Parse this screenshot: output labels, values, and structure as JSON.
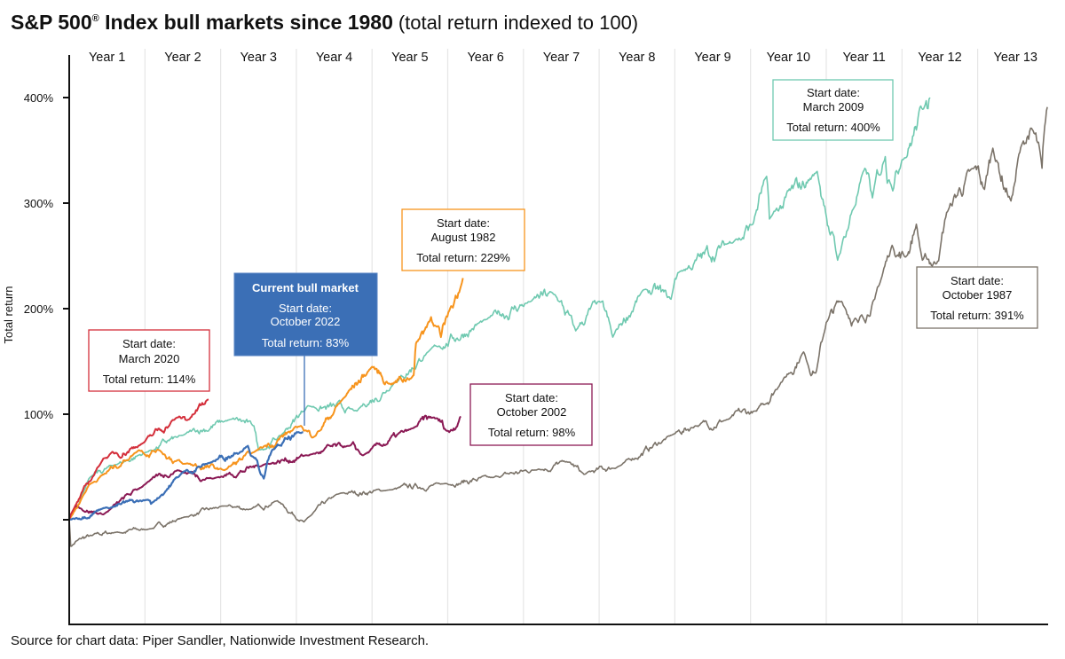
{
  "chart_data": {
    "type": "line",
    "title": "S&P 500",
    "title_mark": "®",
    "title_rest": " Index bull markets since 1980",
    "subtitle": "(total return indexed to 100)",
    "xlabel": "",
    "ylabel": "Total return",
    "x_range_years": [
      0,
      13
    ],
    "y_range_pct": [
      -100,
      420
    ],
    "y_ticks": [
      {
        "value": 400,
        "label": "400%"
      },
      {
        "value": 300,
        "label": "300%"
      },
      {
        "value": 200,
        "label": "200%"
      },
      {
        "value": 100,
        "label": "100%"
      },
      {
        "value": 0,
        "label": ""
      }
    ],
    "x_categories": [
      "Year 1",
      "Year 2",
      "Year 3",
      "Year 4",
      "Year 5",
      "Year 6",
      "Year 7",
      "Year 8",
      "Year 9",
      "Year 10",
      "Year 11",
      "Year 12",
      "Year 13"
    ],
    "grid": "vertical",
    "series": [
      {
        "name": "October 1987",
        "color": "#7b7369",
        "width": 1.6,
        "points": [
          [
            0,
            0
          ],
          [
            0.02,
            -25
          ],
          [
            0.1,
            -20
          ],
          [
            0.3,
            -15
          ],
          [
            0.6,
            -12
          ],
          [
            1.04,
            -9
          ],
          [
            1.5,
            2
          ],
          [
            2.05,
            13
          ],
          [
            2.4,
            10
          ],
          [
            2.75,
            18
          ],
          [
            3.1,
            -2
          ],
          [
            3.53,
            24
          ],
          [
            4.2,
            28
          ],
          [
            4.94,
            34
          ],
          [
            5.6,
            40
          ],
          [
            6.2,
            48
          ],
          [
            6.57,
            55
          ],
          [
            6.8,
            43
          ],
          [
            7.27,
            51
          ],
          [
            7.98,
            81
          ],
          [
            8.27,
            89
          ],
          [
            8.7,
            95
          ],
          [
            9.08,
            103
          ],
          [
            9.4,
            130
          ],
          [
            9.7,
            159
          ],
          [
            9.86,
            139
          ],
          [
            10.0,
            187
          ],
          [
            10.2,
            207
          ],
          [
            10.42,
            187
          ],
          [
            10.64,
            209
          ],
          [
            10.87,
            260
          ],
          [
            11.05,
            249
          ],
          [
            11.19,
            280
          ],
          [
            11.27,
            246
          ],
          [
            11.46,
            243
          ],
          [
            11.59,
            291
          ],
          [
            11.95,
            333
          ],
          [
            12.09,
            313
          ],
          [
            12.2,
            352
          ],
          [
            12.44,
            302
          ],
          [
            12.58,
            355
          ],
          [
            12.71,
            371
          ],
          [
            12.85,
            333
          ],
          [
            12.92,
            391
          ]
        ]
      },
      {
        "name": "March 2009",
        "color": "#6fc9b0",
        "width": 1.6,
        "points": [
          [
            0,
            0
          ],
          [
            0.26,
            39
          ],
          [
            0.6,
            52
          ],
          [
            1.02,
            64
          ],
          [
            1.5,
            80
          ],
          [
            2.13,
            95
          ],
          [
            2.44,
            89
          ],
          [
            2.5,
            66
          ],
          [
            2.8,
            80
          ],
          [
            3.15,
            108
          ],
          [
            3.8,
            103
          ],
          [
            4.3,
            130
          ],
          [
            4.74,
            159
          ],
          [
            5.52,
            190
          ],
          [
            6.1,
            207
          ],
          [
            6.42,
            213
          ],
          [
            6.69,
            179
          ],
          [
            7.0,
            207
          ],
          [
            7.18,
            173
          ],
          [
            7.59,
            218
          ],
          [
            7.95,
            209
          ],
          [
            8.04,
            234
          ],
          [
            8.81,
            266
          ],
          [
            9.03,
            280
          ],
          [
            9.2,
            324
          ],
          [
            9.25,
            285
          ],
          [
            9.88,
            330
          ],
          [
            9.98,
            297
          ],
          [
            10.15,
            246
          ],
          [
            10.51,
            333
          ],
          [
            10.61,
            305
          ],
          [
            10.78,
            344
          ],
          [
            10.83,
            322
          ],
          [
            11.0,
            341
          ],
          [
            11.32,
            397
          ],
          [
            11.37,
            400
          ]
        ]
      },
      {
        "name": "October 2002",
        "color": "#8b1a55",
        "width": 2,
        "points": [
          [
            0,
            0
          ],
          [
            0.1,
            13
          ],
          [
            0.45,
            5
          ],
          [
            1.04,
            36
          ],
          [
            1.43,
            47
          ],
          [
            1.9,
            39
          ],
          [
            2.6,
            53
          ],
          [
            3.2,
            62
          ],
          [
            3.68,
            70
          ],
          [
            3.88,
            61
          ],
          [
            4.55,
            87
          ],
          [
            4.82,
            97
          ],
          [
            5.02,
            83
          ],
          [
            5.17,
            98
          ]
        ]
      },
      {
        "name": "August 1982",
        "color": "#f7941d",
        "width": 2,
        "points": [
          [
            0,
            0
          ],
          [
            0.26,
            33
          ],
          [
            0.92,
            66
          ],
          [
            1.19,
            66
          ],
          [
            1.5,
            53
          ],
          [
            2.05,
            47
          ],
          [
            2.44,
            64
          ],
          [
            3.06,
            89
          ],
          [
            3.22,
            78
          ],
          [
            3.61,
            114
          ],
          [
            4.0,
            145
          ],
          [
            4.23,
            129
          ],
          [
            4.55,
            137
          ],
          [
            4.58,
            167
          ],
          [
            4.78,
            192
          ],
          [
            4.91,
            173
          ],
          [
            5.02,
            198
          ],
          [
            5.2,
            229
          ]
        ]
      },
      {
        "name": "March 2020",
        "color": "#d42f3b",
        "width": 2,
        "points": [
          [
            0,
            0
          ],
          [
            0.02,
            5
          ],
          [
            0.45,
            58
          ],
          [
            0.96,
            72
          ],
          [
            1.43,
            97
          ],
          [
            1.58,
            95
          ],
          [
            1.84,
            114
          ]
        ]
      },
      {
        "name": "Current bull market (October 2022)",
        "color": "#3b6fb6",
        "width": 2.2,
        "points": [
          [
            0,
            0
          ],
          [
            0.45,
            11
          ],
          [
            1.04,
            19
          ],
          [
            1.08,
            15
          ],
          [
            1.5,
            45
          ],
          [
            1.82,
            53
          ],
          [
            2.36,
            70
          ],
          [
            2.57,
            39
          ],
          [
            2.68,
            66
          ],
          [
            3.09,
            83
          ]
        ]
      }
    ],
    "annotations": [
      {
        "id": "march-2020",
        "color": "#d42f3b",
        "line1": "Start date:",
        "line2": "March 2020",
        "line3": "Total return: 114%"
      },
      {
        "id": "current",
        "color": "#3b6fb6",
        "header": "Current bull market",
        "line1": "Start date:",
        "line2": "October 2022",
        "line3": "Total return: 83%"
      },
      {
        "id": "august-1982",
        "color": "#f7941d",
        "line1": "Start date:",
        "line2": "August 1982",
        "line3": "Total return: 229%"
      },
      {
        "id": "october-2002",
        "color": "#8b1a55",
        "line1": "Start date:",
        "line2": "October 2002",
        "line3": "Total return: 98%"
      },
      {
        "id": "march-2009",
        "color": "#6fc9b0",
        "line1": "Start date:",
        "line2": "March 2009",
        "line3": "Total return: 400%"
      },
      {
        "id": "october-1987",
        "color": "#7b7369",
        "line1": "Start date:",
        "line2": "October 1987",
        "line3": "Total return: 391%"
      }
    ],
    "source": "Source for chart data: Piper Sandler, Nationwide Investment Research."
  }
}
